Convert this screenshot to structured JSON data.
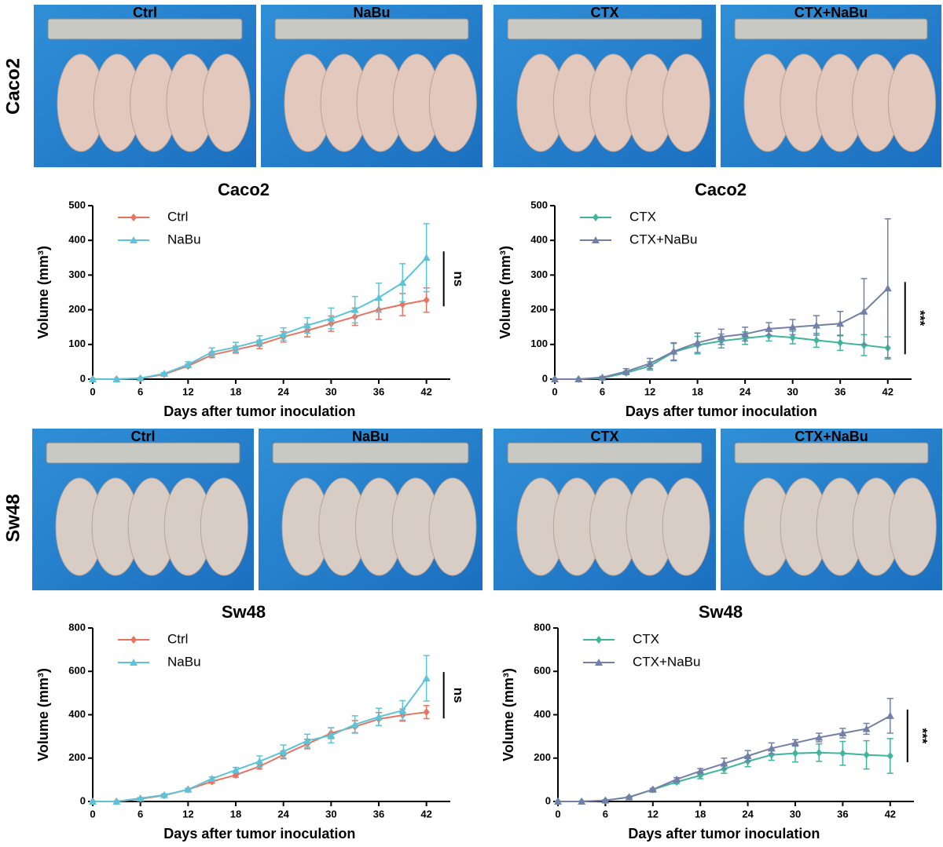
{
  "photo_rows": [
    {
      "label": "Caco2",
      "panels": [
        "Ctrl",
        "NaBu",
        "CTX",
        "CTX+NaBu"
      ]
    },
    {
      "label": "Sw48",
      "panels": [
        "Ctrl",
        "NaBu",
        "CTX",
        "CTX+NaBu"
      ]
    }
  ],
  "chart_data": [
    {
      "type": "line",
      "title": "Caco2",
      "xlabel": "Days after tumor inoculation",
      "ylabel": "Volume (mm³)",
      "x": [
        0,
        3,
        6,
        9,
        12,
        15,
        18,
        21,
        24,
        27,
        30,
        33,
        36,
        39,
        42
      ],
      "xlim": [
        0,
        45
      ],
      "xticks": [
        0,
        6,
        12,
        18,
        24,
        30,
        36,
        42
      ],
      "ylim": [
        0,
        500
      ],
      "yticks": [
        0,
        100,
        200,
        300,
        400,
        500
      ],
      "annotation": "ns",
      "series": [
        {
          "name": "Ctrl",
          "color": "#e8735f",
          "marker": "diamond",
          "values": [
            0,
            0,
            2,
            14,
            38,
            70,
            85,
            100,
            122,
            140,
            160,
            180,
            200,
            215,
            228
          ],
          "errors": [
            0,
            0,
            1,
            3,
            5,
            8,
            10,
            12,
            15,
            18,
            22,
            25,
            28,
            32,
            35
          ]
        },
        {
          "name": "NaBu",
          "color": "#5bc4d8",
          "marker": "triangle",
          "values": [
            0,
            0,
            3,
            16,
            42,
            78,
            92,
            110,
            130,
            155,
            175,
            200,
            235,
            278,
            350
          ],
          "errors": [
            0,
            0,
            1,
            3,
            8,
            12,
            14,
            15,
            18,
            22,
            30,
            38,
            42,
            55,
            98
          ]
        }
      ]
    },
    {
      "type": "line",
      "title": "Caco2",
      "xlabel": "Days after tumor inoculation",
      "ylabel": "Volume (mm³)",
      "x": [
        0,
        3,
        6,
        9,
        12,
        15,
        18,
        21,
        24,
        27,
        30,
        33,
        36,
        39,
        42
      ],
      "xlim": [
        0,
        45
      ],
      "xticks": [
        0,
        6,
        12,
        18,
        24,
        30,
        36,
        42
      ],
      "ylim": [
        0,
        500
      ],
      "yticks": [
        0,
        100,
        200,
        300,
        400,
        500
      ],
      "annotation": "***",
      "series": [
        {
          "name": "CTX",
          "color": "#3fb59b",
          "marker": "diamond",
          "values": [
            0,
            0,
            3,
            18,
            38,
            78,
            98,
            110,
            118,
            125,
            120,
            112,
            105,
            98,
            90
          ],
          "errors": [
            0,
            0,
            2,
            5,
            12,
            25,
            25,
            20,
            18,
            15,
            18,
            20,
            22,
            30,
            32
          ]
        },
        {
          "name": "CTX+NaBu",
          "color": "#7280a8",
          "marker": "triangle",
          "values": [
            0,
            0,
            5,
            22,
            45,
            80,
            105,
            122,
            130,
            145,
            150,
            155,
            160,
            195,
            262
          ],
          "errors": [
            0,
            0,
            3,
            8,
            15,
            25,
            28,
            22,
            20,
            18,
            22,
            28,
            35,
            95,
            200
          ]
        }
      ]
    },
    {
      "type": "line",
      "title": "Sw48",
      "xlabel": "Days after tumor inoculation",
      "ylabel": "Volume (mm³)",
      "x": [
        0,
        3,
        6,
        9,
        12,
        15,
        18,
        21,
        24,
        27,
        30,
        33,
        36,
        39,
        42
      ],
      "xlim": [
        0,
        45
      ],
      "xticks": [
        0,
        6,
        12,
        18,
        24,
        30,
        36,
        42
      ],
      "ylim": [
        0,
        800
      ],
      "yticks": [
        0,
        200,
        400,
        600,
        800
      ],
      "annotation": "ns",
      "series": [
        {
          "name": "Ctrl",
          "color": "#e8735f",
          "marker": "diamond",
          "values": [
            0,
            0,
            12,
            28,
            55,
            92,
            122,
            162,
            215,
            265,
            315,
            345,
            380,
            398,
            412
          ],
          "errors": [
            0,
            0,
            3,
            5,
            5,
            8,
            10,
            12,
            18,
            22,
            25,
            28,
            30,
            28,
            30
          ]
        },
        {
          "name": "NaBu",
          "color": "#5bc4d8",
          "marker": "triangle",
          "values": [
            0,
            0,
            15,
            30,
            55,
            105,
            145,
            185,
            230,
            280,
            305,
            355,
            390,
            420,
            568
          ],
          "errors": [
            0,
            0,
            3,
            5,
            5,
            8,
            12,
            25,
            30,
            30,
            35,
            40,
            40,
            45,
            105
          ]
        }
      ]
    },
    {
      "type": "line",
      "title": "Sw48",
      "xlabel": "Days after tumor inoculation",
      "ylabel": "Volume (mm³)",
      "x": [
        0,
        3,
        6,
        9,
        12,
        15,
        18,
        21,
        24,
        27,
        30,
        33,
        36,
        39,
        42
      ],
      "xlim": [
        0,
        45
      ],
      "xticks": [
        0,
        6,
        12,
        18,
        24,
        30,
        36,
        42
      ],
      "ylim": [
        0,
        800
      ],
      "yticks": [
        0,
        200,
        400,
        600,
        800
      ],
      "annotation": "***",
      "series": [
        {
          "name": "CTX",
          "color": "#3fb59b",
          "marker": "diamond",
          "values": [
            0,
            0,
            5,
            20,
            55,
            90,
            120,
            150,
            185,
            215,
            222,
            225,
            222,
            215,
            210
          ],
          "errors": [
            0,
            0,
            2,
            3,
            5,
            8,
            15,
            20,
            25,
            25,
            40,
            40,
            55,
            65,
            80
          ]
        },
        {
          "name": "CTX+NaBu",
          "color": "#7280a8",
          "marker": "triangle",
          "values": [
            0,
            0,
            5,
            20,
            55,
            102,
            140,
            175,
            210,
            245,
            270,
            295,
            315,
            335,
            395
          ],
          "errors": [
            0,
            0,
            2,
            3,
            5,
            8,
            12,
            25,
            25,
            25,
            15,
            20,
            22,
            25,
            80
          ]
        }
      ]
    }
  ]
}
